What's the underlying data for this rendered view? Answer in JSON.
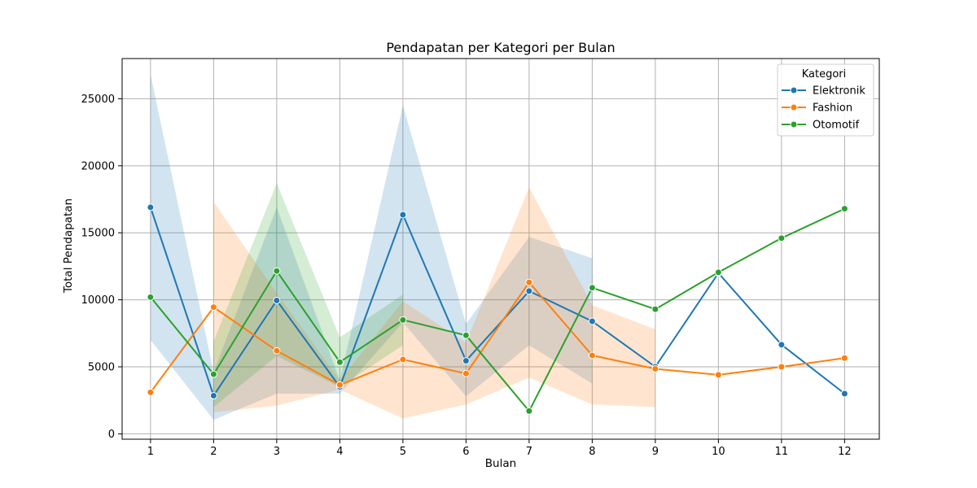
{
  "chart_data": {
    "type": "line",
    "title": "Pendapatan per Kategori per Bulan",
    "xlabel": "Bulan",
    "ylabel": "Total Pendapatan",
    "x": [
      1,
      2,
      3,
      4,
      5,
      6,
      7,
      8,
      9,
      10,
      11,
      12
    ],
    "xlim": [
      0.55,
      12.55
    ],
    "ylim": [
      -400,
      28000
    ],
    "yticks": [
      0,
      5000,
      10000,
      15000,
      20000,
      25000
    ],
    "grid": true,
    "legend": {
      "title": "Kategori",
      "placement": "top-right"
    },
    "series": [
      {
        "name": "Elektronik",
        "color": "#1f77b4",
        "x": [
          1,
          2,
          3,
          4,
          5,
          6,
          7,
          8,
          9,
          10,
          11,
          12
        ],
        "values": [
          16900,
          2850,
          9950,
          3500,
          16350,
          5450,
          10650,
          8400,
          5000,
          12000,
          6650,
          3000
        ],
        "ci_x": [
          1,
          2,
          3,
          4,
          5,
          6,
          7,
          8
        ],
        "ci_low": [
          7000,
          1050,
          3000,
          3000,
          8300,
          2800,
          6600,
          3750
        ],
        "ci_high": [
          26800,
          4600,
          16900,
          4000,
          24500,
          8200,
          14700,
          13100
        ]
      },
      {
        "name": "Fashion",
        "color": "#ff7f0e",
        "x": [
          1,
          2,
          3,
          4,
          5,
          6,
          7,
          8,
          9,
          10,
          11,
          12
        ],
        "values": [
          3100,
          9450,
          6200,
          3650,
          5550,
          4500,
          11300,
          5850,
          4850,
          4400,
          5000,
          5650
        ],
        "ci_x": [
          2,
          3,
          4,
          5,
          6,
          7,
          8,
          9
        ],
        "ci_low": [
          1600,
          2100,
          3300,
          1150,
          2200,
          4200,
          2200,
          2000
        ],
        "ci_high": [
          17300,
          10500,
          4000,
          9900,
          6800,
          18400,
          9600,
          7800
        ]
      },
      {
        "name": "Otomotif",
        "color": "#2ca02c",
        "x": [
          1,
          2,
          3,
          4,
          5,
          6,
          7,
          8,
          9,
          10,
          11,
          12
        ],
        "values": [
          10200,
          4450,
          12150,
          5350,
          8500,
          7350,
          1700,
          10900,
          9300,
          12050,
          14600,
          16800
        ],
        "ci_x": [
          2,
          3,
          4,
          5
        ],
        "ci_low": [
          2000,
          5800,
          3500,
          6600
        ],
        "ci_high": [
          6900,
          18700,
          7200,
          10400
        ]
      }
    ]
  }
}
